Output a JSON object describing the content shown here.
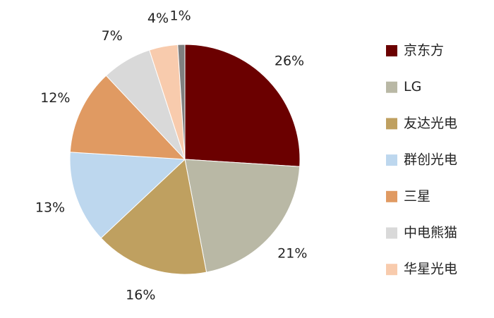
{
  "chart_data": {
    "type": "pie",
    "categories": [
      "京东方",
      "LG",
      "友达光电",
      "群创光电",
      "三星",
      "中电熊猫",
      "华星光电",
      null
    ],
    "values": [
      26,
      21,
      16,
      13,
      12,
      7,
      4,
      1
    ],
    "value_labels": [
      "26%",
      "21%",
      "16%",
      "13%",
      "12%",
      "7%",
      "4%",
      "1%"
    ],
    "colors": [
      "#6b0000",
      "#b9b8a5",
      "#bfa060",
      "#bdd7ee",
      "#e09a62",
      "#d9d9d9",
      "#f8cbad",
      "#7f7f7f"
    ],
    "legend": "right"
  }
}
